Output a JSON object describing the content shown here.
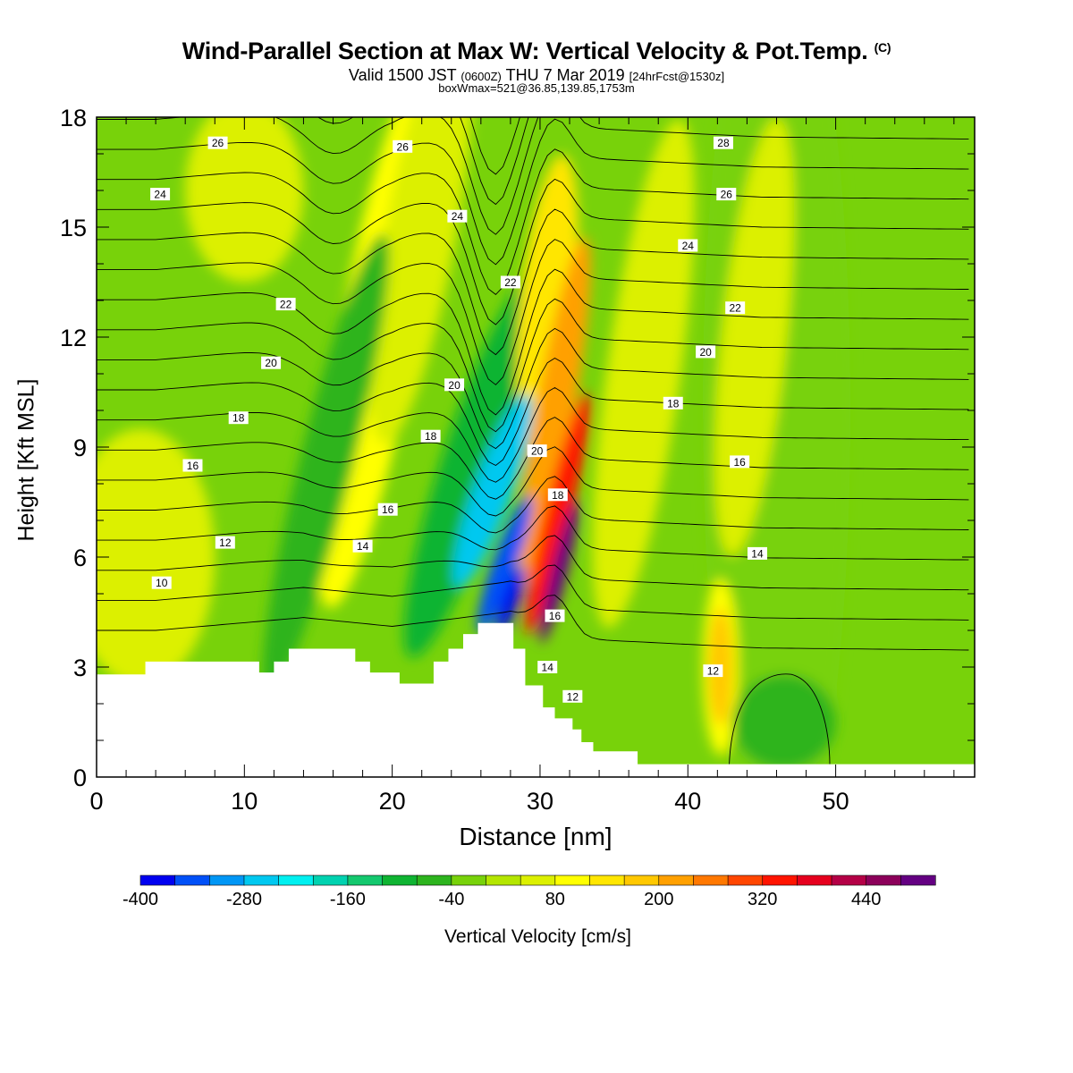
{
  "header": {
    "title": "Wind-Parallel Section at Max W: Vertical Velocity & Pot.Temp.",
    "copyright_mark": "(C)",
    "valid_prefix": "Valid 1500 JST",
    "valid_utc": "(0600Z)",
    "valid_date": "THU 7 Mar 2019",
    "forecast_info": "[24hrFcst@1530z]",
    "box_info": "boxWmax=521@36.85,139.85,1753m"
  },
  "chart_data": {
    "type": "heatmap",
    "title": "Wind-Parallel Section at Max W: Vertical Velocity & Pot.Temp.",
    "xlabel": "Distance [nm]",
    "ylabel": "Height [Kft MSL]",
    "xlim": [
      0,
      59.4
    ],
    "ylim": [
      0,
      18
    ],
    "x_ticks": [
      0,
      10,
      20,
      30,
      40,
      50
    ],
    "y_ticks": [
      0,
      3,
      6,
      9,
      12,
      15,
      18
    ],
    "grid": false,
    "colorbar": {
      "label": "Vertical Velocity [cm/s]",
      "tick_labels": [
        "-400",
        "-280",
        "-160",
        "-40",
        "80",
        "200",
        "320",
        "440"
      ],
      "levels": [
        -400,
        -360,
        -320,
        -280,
        -240,
        -200,
        -160,
        -120,
        -80,
        -40,
        0,
        40,
        80,
        120,
        160,
        200,
        240,
        280,
        320,
        360,
        400,
        440,
        480,
        520
      ],
      "colors": [
        "#0000f0",
        "#0050f8",
        "#0096f5",
        "#00c8f0",
        "#00f0f0",
        "#00d2b0",
        "#14c86e",
        "#0fb432",
        "#2db41e",
        "#78d20a",
        "#b4e600",
        "#dcf000",
        "#ffff00",
        "#ffe600",
        "#ffc800",
        "#ffa000",
        "#ff7800",
        "#ff4600",
        "#ff1400",
        "#e6001e",
        "#b40046",
        "#8c005a",
        "#640082"
      ]
    },
    "theta_contour_labels": [
      "10",
      "12",
      "14",
      "16",
      "18",
      "20",
      "22",
      "24",
      "26",
      "28"
    ],
    "theta_levels": [
      9,
      10,
      11,
      12,
      13,
      14,
      15,
      16,
      17,
      18,
      19,
      20,
      21,
      22,
      23,
      24,
      25,
      26,
      27,
      28
    ],
    "terrain_profile": [
      [
        0,
        2.8
      ],
      [
        3.3,
        2.8
      ],
      [
        3.3,
        3.15
      ],
      [
        11,
        3.15
      ],
      [
        11,
        2.85
      ],
      [
        12,
        2.85
      ],
      [
        12,
        3.15
      ],
      [
        13,
        3.15
      ],
      [
        13,
        3.5
      ],
      [
        17.5,
        3.5
      ],
      [
        17.5,
        3.15
      ],
      [
        18.5,
        3.15
      ],
      [
        18.5,
        2.85
      ],
      [
        20.5,
        2.85
      ],
      [
        20.5,
        2.55
      ],
      [
        22.8,
        2.55
      ],
      [
        22.8,
        3.15
      ],
      [
        23.8,
        3.15
      ],
      [
        23.8,
        3.5
      ],
      [
        24.8,
        3.5
      ],
      [
        24.8,
        3.9
      ],
      [
        25.8,
        3.9
      ],
      [
        25.8,
        4.2
      ],
      [
        28.2,
        4.2
      ],
      [
        28.2,
        3.5
      ],
      [
        29,
        3.5
      ],
      [
        29,
        2.5
      ],
      [
        30.2,
        2.5
      ],
      [
        30.2,
        1.9
      ],
      [
        31,
        1.9
      ],
      [
        31,
        1.6
      ],
      [
        32.2,
        1.6
      ],
      [
        32.2,
        1.3
      ],
      [
        32.8,
        1.3
      ],
      [
        32.8,
        0.95
      ],
      [
        33.6,
        0.95
      ],
      [
        33.6,
        0.7
      ],
      [
        36.6,
        0.7
      ],
      [
        36.6,
        0.35
      ],
      [
        59.4,
        0.35
      ]
    ],
    "vertical_velocity_features": [
      {
        "x": 28.0,
        "y": 4.8,
        "value": -400
      },
      {
        "x": 26.8,
        "y": 7.8,
        "value": -250
      },
      {
        "x": 15.5,
        "y": 8.5,
        "value": -80
      },
      {
        "x": 31.2,
        "y": 5.5,
        "value": 480
      },
      {
        "x": 31.0,
        "y": 8.5,
        "value": 330
      },
      {
        "x": 30.5,
        "y": 12.5,
        "value": 170
      },
      {
        "x": 42.2,
        "y": 3.0,
        "value": 160
      },
      {
        "x": 19.5,
        "y": 12.0,
        "value": 80
      },
      {
        "x": 23.5,
        "y": 14.0,
        "value": 70
      },
      {
        "x": 3.0,
        "y": 6.0,
        "value": 50
      },
      {
        "x": 46.0,
        "y": 1.5,
        "value": -50
      }
    ]
  },
  "contour_labels": [
    {
      "text": "26",
      "x": 8.2,
      "y": 17.3
    },
    {
      "text": "26",
      "x": 20.7,
      "y": 17.2
    },
    {
      "text": "28",
      "x": 42.4,
      "y": 17.3
    },
    {
      "text": "24",
      "x": 4.3,
      "y": 15.9
    },
    {
      "text": "24",
      "x": 24.4,
      "y": 15.3
    },
    {
      "text": "26",
      "x": 42.6,
      "y": 15.9
    },
    {
      "text": "24",
      "x": 40.0,
      "y": 14.5
    },
    {
      "text": "22",
      "x": 12.8,
      "y": 12.9
    },
    {
      "text": "22",
      "x": 28.0,
      "y": 13.5
    },
    {
      "text": "22",
      "x": 43.2,
      "y": 12.8
    },
    {
      "text": "20",
      "x": 11.8,
      "y": 11.3
    },
    {
      "text": "20",
      "x": 24.2,
      "y": 10.7
    },
    {
      "text": "20",
      "x": 41.2,
      "y": 11.6
    },
    {
      "text": "18",
      "x": 9.6,
      "y": 9.8
    },
    {
      "text": "18",
      "x": 22.6,
      "y": 9.3
    },
    {
      "text": "20",
      "x": 29.8,
      "y": 8.9
    },
    {
      "text": "18",
      "x": 39.0,
      "y": 10.2
    },
    {
      "text": "16",
      "x": 6.5,
      "y": 8.5
    },
    {
      "text": "18",
      "x": 31.2,
      "y": 7.7
    },
    {
      "text": "16",
      "x": 43.5,
      "y": 8.6
    },
    {
      "text": "16",
      "x": 19.7,
      "y": 7.3
    },
    {
      "text": "12",
      "x": 8.7,
      "y": 6.4
    },
    {
      "text": "14",
      "x": 18.0,
      "y": 6.3
    },
    {
      "text": "14",
      "x": 44.7,
      "y": 6.1
    },
    {
      "text": "10",
      "x": 4.4,
      "y": 5.3
    },
    {
      "text": "16",
      "x": 31.0,
      "y": 4.4
    },
    {
      "text": "14",
      "x": 30.5,
      "y": 3.0
    },
    {
      "text": "12",
      "x": 41.7,
      "y": 2.9
    },
    {
      "text": "12",
      "x": 32.2,
      "y": 2.2
    }
  ]
}
